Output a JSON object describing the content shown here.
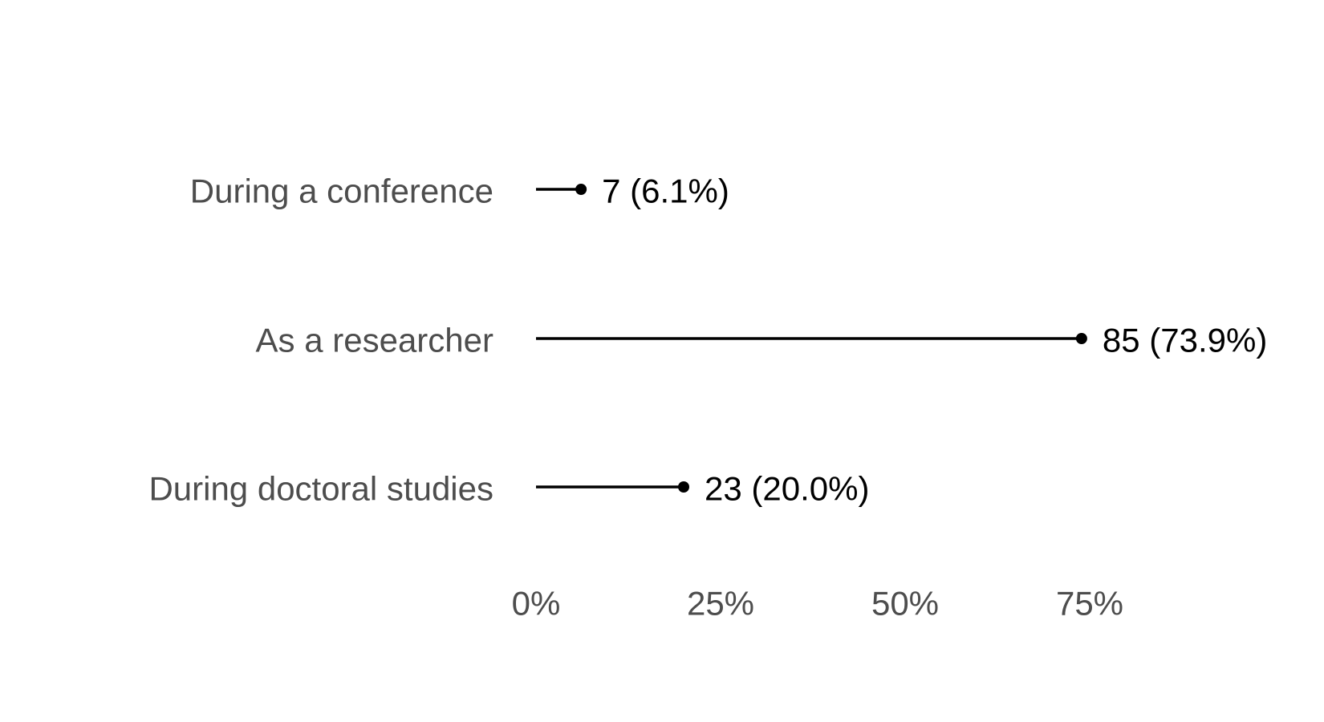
{
  "chart_data": {
    "type": "lollipop",
    "title": "",
    "xlabel": "",
    "ylabel": "",
    "categories": [
      "During a conference",
      "As a researcher",
      "During doctoral studies"
    ],
    "values": [
      6.1,
      73.9,
      20.0
    ],
    "labels": [
      "7 (6.1%)",
      "85 (73.9%)",
      "23 (20.0%)"
    ],
    "xlim": [
      0,
      100
    ],
    "x_ticks": [
      0,
      25,
      50,
      75
    ],
    "x_tick_labels": [
      "0%",
      "25%",
      "50%",
      "75%"
    ],
    "grid": false,
    "legend": "none",
    "colors": {
      "mark": "#000000",
      "axis_text": "#4d4d4d",
      "data_label": "#000000"
    }
  }
}
